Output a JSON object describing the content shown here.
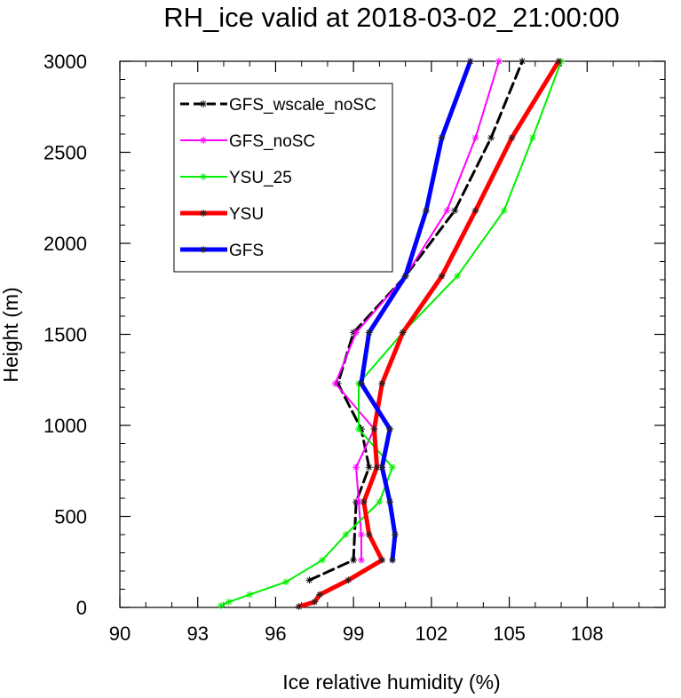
{
  "chart_data": {
    "type": "line",
    "title": "RH_ice valid at 2018-03-02_21:00:00",
    "xlabel": "Ice relative humidity (%)",
    "ylabel": "Height (m)",
    "xlim": [
      90,
      111
    ],
    "ylim": [
      0,
      3000
    ],
    "xticks": [
      90,
      93,
      96,
      99,
      102,
      105,
      108
    ],
    "yticks": [
      0,
      500,
      1000,
      1500,
      2000,
      2500,
      3000
    ],
    "grid": false,
    "legend_position": "top-left",
    "series": [
      {
        "name": "GFS_wscale_noSC",
        "color": "#000000",
        "style": "dashed",
        "width": 3,
        "points": [
          [
            97.3,
            150
          ],
          [
            99.0,
            260
          ],
          [
            99.1,
            580
          ],
          [
            99.6,
            770
          ],
          [
            99.3,
            980
          ],
          [
            98.4,
            1230
          ],
          [
            99.0,
            1510
          ],
          [
            101.0,
            1820
          ],
          [
            102.9,
            2180
          ],
          [
            104.3,
            2580
          ],
          [
            105.5,
            3000
          ]
        ]
      },
      {
        "name": "GFS_noSC",
        "color": "#ff00ff",
        "style": "solid",
        "width": 2,
        "points": [
          [
            99.3,
            260
          ],
          [
            99.3,
            400
          ],
          [
            99.2,
            580
          ],
          [
            99.1,
            770
          ],
          [
            99.8,
            980
          ],
          [
            98.3,
            1230
          ],
          [
            99.1,
            1510
          ],
          [
            101.0,
            1820
          ],
          [
            102.6,
            2180
          ],
          [
            103.7,
            2580
          ],
          [
            104.6,
            3000
          ]
        ]
      },
      {
        "name": "YSU_25",
        "color": "#00ee00",
        "style": "solid",
        "width": 2,
        "points": [
          [
            93.9,
            10
          ],
          [
            94.2,
            30
          ],
          [
            95.0,
            70
          ],
          [
            96.4,
            140
          ],
          [
            97.8,
            260
          ],
          [
            98.7,
            400
          ],
          [
            100.0,
            580
          ],
          [
            100.5,
            770
          ],
          [
            99.2,
            980
          ],
          [
            99.2,
            1230
          ],
          [
            100.9,
            1510
          ],
          [
            103.0,
            1820
          ],
          [
            104.8,
            2180
          ],
          [
            105.9,
            2580
          ],
          [
            107.0,
            3000
          ]
        ]
      },
      {
        "name": "YSU",
        "color": "#ff0000",
        "style": "solid",
        "width": 5,
        "points": [
          [
            96.9,
            5
          ],
          [
            97.5,
            30
          ],
          [
            97.7,
            70
          ],
          [
            98.8,
            150
          ],
          [
            100.1,
            260
          ],
          [
            99.6,
            400
          ],
          [
            99.4,
            580
          ],
          [
            99.9,
            770
          ],
          [
            99.8,
            980
          ],
          [
            100.1,
            1230
          ],
          [
            100.9,
            1510
          ],
          [
            102.4,
            1820
          ],
          [
            103.7,
            2180
          ],
          [
            105.1,
            2580
          ],
          [
            106.9,
            3000
          ]
        ]
      },
      {
        "name": "GFS",
        "color": "#0000ff",
        "style": "solid",
        "width": 5,
        "points": [
          [
            100.5,
            260
          ],
          [
            100.6,
            400
          ],
          [
            100.4,
            580
          ],
          [
            100.1,
            770
          ],
          [
            100.4,
            980
          ],
          [
            99.3,
            1230
          ],
          [
            99.6,
            1510
          ],
          [
            101.0,
            1820
          ],
          [
            101.8,
            2180
          ],
          [
            102.4,
            2580
          ],
          [
            103.5,
            3000
          ]
        ]
      }
    ]
  }
}
